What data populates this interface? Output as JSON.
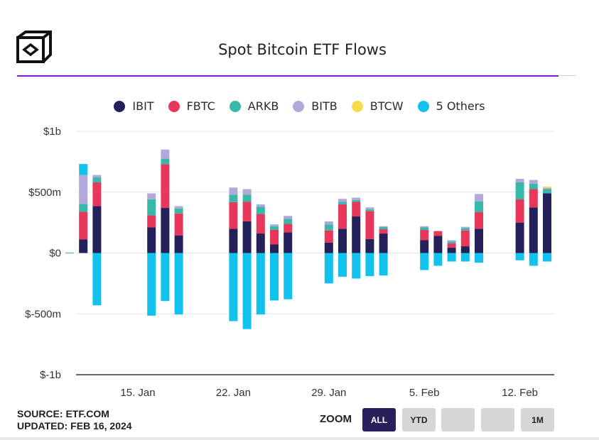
{
  "header": {
    "title": "Spot Bitcoin ETF Flows",
    "logo_icon": "cube-logo-icon"
  },
  "colors": {
    "IBIT": "#23205a",
    "FBTC": "#e8375a",
    "ARKB": "#37b8a8",
    "BITB": "#b3a8dc",
    "BTCW": "#f4dc4a",
    "Others": "#13c2ec",
    "accent": "#8a14d1"
  },
  "chart_data": {
    "type": "bar",
    "stacked": true,
    "title": "Spot Bitcoin ETF Flows",
    "ylim": [
      -1000,
      1000
    ],
    "y_ticks": [
      {
        "value": 1000,
        "label": "$1b"
      },
      {
        "value": 500,
        "label": "$500m"
      },
      {
        "value": 0,
        "label": "$0"
      },
      {
        "value": -500,
        "label": "$-500m"
      },
      {
        "value": -1000,
        "label": "$-1b"
      }
    ],
    "x_tick_labels": [
      {
        "date": "2024-01-15",
        "label": "15. Jan"
      },
      {
        "date": "2024-01-22",
        "label": "22. Jan"
      },
      {
        "date": "2024-01-29",
        "label": "29. Jan"
      },
      {
        "date": "2024-02-05",
        "label": "5. Feb"
      },
      {
        "date": "2024-02-12",
        "label": "12. Feb"
      }
    ],
    "legend": [
      {
        "key": "IBIT",
        "label": "IBIT"
      },
      {
        "key": "FBTC",
        "label": "FBTC"
      },
      {
        "key": "ARKB",
        "label": "ARKB"
      },
      {
        "key": "BITB",
        "label": "BITB"
      },
      {
        "key": "BTCW",
        "label": "BTCW"
      },
      {
        "key": "Others",
        "label": "5 Others"
      }
    ],
    "series_keys": [
      "IBIT",
      "FBTC",
      "ARKB",
      "BITB",
      "BTCW"
    ],
    "days": [
      {
        "date": "2024-01-10",
        "IBIT": 0,
        "FBTC": 0,
        "ARKB": 3,
        "BITB": 0,
        "BTCW": 0,
        "Others": 0
      },
      {
        "date": "2024-01-11",
        "IBIT": 111,
        "FBTC": 227,
        "ARKB": 65,
        "BITB": 238,
        "BTCW": 0,
        "Others": 90
      },
      {
        "date": "2024-01-12",
        "IBIT": 386,
        "FBTC": 194,
        "ARKB": 41,
        "BITB": 20,
        "BTCW": 0,
        "Others": -430
      },
      {
        "date": "2024-01-16",
        "IBIT": 210,
        "FBTC": 100,
        "ARKB": 130,
        "BITB": 50,
        "BTCW": 0,
        "Others": -515
      },
      {
        "date": "2024-01-17",
        "IBIT": 370,
        "FBTC": 360,
        "ARKB": 45,
        "BITB": 75,
        "BTCW": 0,
        "Others": -395
      },
      {
        "date": "2024-01-18",
        "IBIT": 145,
        "FBTC": 180,
        "ARKB": 40,
        "BITB": 20,
        "BTCW": 0,
        "Others": -505
      },
      {
        "date": "2024-01-22",
        "IBIT": 198,
        "FBTC": 220,
        "ARKB": 60,
        "BITB": 60,
        "BTCW": 0,
        "Others": -560
      },
      {
        "date": "2024-01-23",
        "IBIT": 260,
        "FBTC": 160,
        "ARKB": 60,
        "BITB": 45,
        "BTCW": 0,
        "Others": -625
      },
      {
        "date": "2024-01-24",
        "IBIT": 160,
        "FBTC": 160,
        "ARKB": 60,
        "BITB": 20,
        "BTCW": 0,
        "Others": -505
      },
      {
        "date": "2024-01-25",
        "IBIT": 70,
        "FBTC": 120,
        "ARKB": 30,
        "BITB": 15,
        "BTCW": 0,
        "Others": -390
      },
      {
        "date": "2024-01-26",
        "IBIT": 170,
        "FBTC": 70,
        "ARKB": 40,
        "BITB": 25,
        "BTCW": 0,
        "Others": -380
      },
      {
        "date": "2024-01-29",
        "IBIT": 85,
        "FBTC": 100,
        "ARKB": 50,
        "BITB": 25,
        "BTCW": 0,
        "Others": -250
      },
      {
        "date": "2024-01-30",
        "IBIT": 200,
        "FBTC": 200,
        "ARKB": 20,
        "BITB": 25,
        "BTCW": 0,
        "Others": -195
      },
      {
        "date": "2024-01-31",
        "IBIT": 300,
        "FBTC": 120,
        "ARKB": 15,
        "BITB": 20,
        "BTCW": 0,
        "Others": -210
      },
      {
        "date": "2024-02-01",
        "IBIT": 115,
        "FBTC": 230,
        "ARKB": 15,
        "BITB": 15,
        "BTCW": 0,
        "Others": -190
      },
      {
        "date": "2024-02-02",
        "IBIT": 160,
        "FBTC": 35,
        "ARKB": 20,
        "BITB": 5,
        "BTCW": 0,
        "Others": -185
      },
      {
        "date": "2024-02-05",
        "IBIT": 105,
        "FBTC": 85,
        "ARKB": 20,
        "BITB": 10,
        "BTCW": 0,
        "Others": -140
      },
      {
        "date": "2024-02-06",
        "IBIT": 140,
        "FBTC": 40,
        "ARKB": 0,
        "BITB": 0,
        "BTCW": 0,
        "Others": -105
      },
      {
        "date": "2024-02-07",
        "IBIT": 45,
        "FBTC": 35,
        "ARKB": 15,
        "BITB": 10,
        "BTCW": 0,
        "Others": -70
      },
      {
        "date": "2024-02-08",
        "IBIT": 55,
        "FBTC": 130,
        "ARKB": 20,
        "BITB": 10,
        "BTCW": 0,
        "Others": -70
      },
      {
        "date": "2024-02-09",
        "IBIT": 200,
        "FBTC": 135,
        "ARKB": 90,
        "BITB": 60,
        "BTCW": 0,
        "Others": -80
      },
      {
        "date": "2024-02-12",
        "IBIT": 250,
        "FBTC": 190,
        "ARKB": 140,
        "BITB": 30,
        "BTCW": 0,
        "Others": -60
      },
      {
        "date": "2024-02-13",
        "IBIT": 375,
        "FBTC": 150,
        "ARKB": 45,
        "BITB": 30,
        "BTCW": 0,
        "Others": -105
      },
      {
        "date": "2024-02-14",
        "IBIT": 490,
        "FBTC": 0,
        "ARKB": 35,
        "BITB": 10,
        "BTCW": 10,
        "Others": -70
      }
    ]
  },
  "footer": {
    "source": "SOURCE: ETF.COM",
    "updated": "UPDATED: FEB 16, 2024"
  },
  "zoom": {
    "label": "ZOOM",
    "buttons": [
      "ALL",
      "YTD",
      "",
      "",
      "1M"
    ],
    "active": "ALL"
  }
}
